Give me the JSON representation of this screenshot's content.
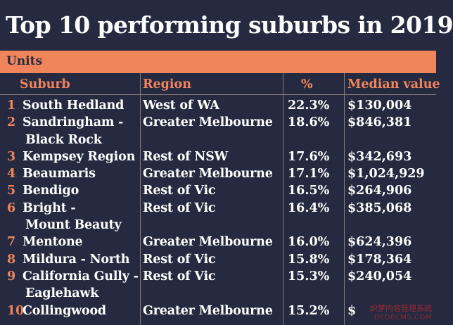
{
  "title": "Top 10 performing suburbs in 2019",
  "band_label": "Units",
  "headers": {
    "suburb": "Suburb",
    "region": "Region",
    "pct": "%",
    "median": "Median value"
  },
  "rows": [
    {
      "rank": "1",
      "suburb": "South Hedland",
      "suburb2": "",
      "region": "West of WA",
      "pct": "22.3%",
      "median": "$130,004"
    },
    {
      "rank": "2",
      "suburb": "Sandringham -",
      "suburb2": "Black Rock",
      "region": "Greater Melbourne",
      "pct": "18.6%",
      "median": "$846,381"
    },
    {
      "rank": "3",
      "suburb": "Kempsey Region",
      "suburb2": "",
      "region": "Rest of NSW",
      "pct": "17.6%",
      "median": "$342,693"
    },
    {
      "rank": "4",
      "suburb": "Beaumaris",
      "suburb2": "",
      "region": "Greater Melbourne",
      "pct": "17.1%",
      "median": "$1,024,929"
    },
    {
      "rank": "5",
      "suburb": "Bendigo",
      "suburb2": "",
      "region": "Rest of Vic",
      "pct": "16.5%",
      "median": "$264,906"
    },
    {
      "rank": "6",
      "suburb": "Bright -",
      "suburb2": "Mount Beauty",
      "region": "Rest of Vic",
      "pct": "16.4%",
      "median": "$385,068"
    },
    {
      "rank": "7",
      "suburb": "Mentone",
      "suburb2": "",
      "region": "Greater Melbourne",
      "pct": "16.0%",
      "median": "$624,396"
    },
    {
      "rank": "8",
      "suburb": "Mildura - North",
      "suburb2": "",
      "region": "Rest of Vic",
      "pct": "15.8%",
      "median": "$178,364"
    },
    {
      "rank": "9",
      "suburb": "California Gully -",
      "suburb2": "Eaglehawk",
      "region": "Rest of Vic",
      "pct": "15.3%",
      "median": "$240,054"
    },
    {
      "rank": "10",
      "suburb": "Collingwood",
      "suburb2": "",
      "region": "Greater Melbourne",
      "pct": "15.2%",
      "median": "$"
    }
  ],
  "watermark": {
    "line1": "织梦内容管理系统",
    "line2": "DEDECMS.COM"
  },
  "colors": {
    "background": "#252a40",
    "accent": "#f0855c",
    "text": "#ffffff"
  }
}
